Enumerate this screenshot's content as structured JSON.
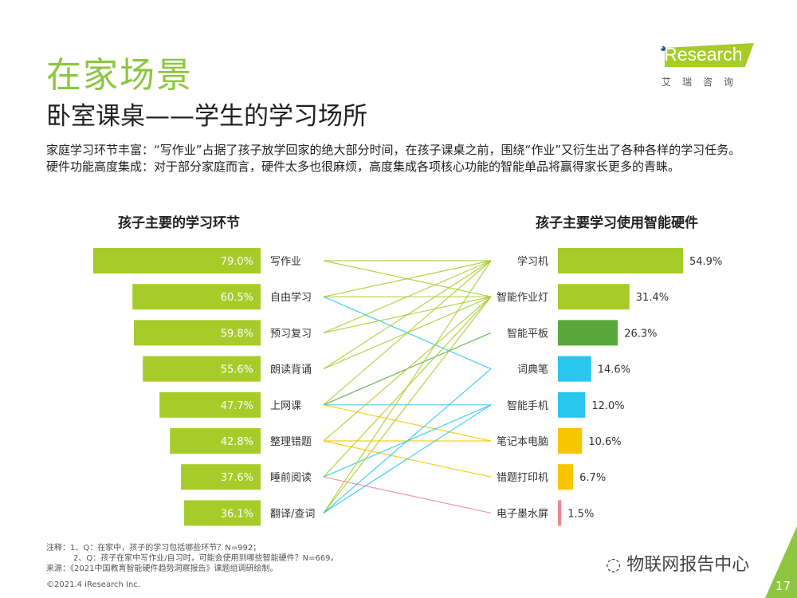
{
  "header": {
    "title": "在家场景",
    "subtitle": "卧室课桌——学生的学习场所"
  },
  "description": [
    "家庭学习环节丰富：“写作业”占据了孩子放学回家的绝大部分时间，在孩子课桌之前，围绕“作业”又衍生出了各种各样的学习任务。",
    "硬件功能高度集成：对于部分家庭而言，硬件太多也很麻烦，高度集成各项核心功能的智能单品将赢得家长更多的青睐。"
  ],
  "logo": {
    "text": "iResearch",
    "cn": "艾瑞咨询"
  },
  "chart_data": [
    {
      "type": "bar",
      "title": "孩子主要的学习环节",
      "categories": [
        "写作业",
        "自由学习",
        "预习复习",
        "朗读背诵",
        "上网课",
        "整理错题",
        "睡前阅读",
        "翻译/查词"
      ],
      "values": [
        79.0,
        60.5,
        59.8,
        55.6,
        47.7,
        42.8,
        37.6,
        36.1
      ],
      "unit": "%",
      "color": "#a6cc2a",
      "orientation": "horizontal-left"
    },
    {
      "type": "bar",
      "title": "孩子主要学习使用智能硬件",
      "categories": [
        "学习机",
        "智能作业灯",
        "智能平板",
        "词典笔",
        "智能手机",
        "笔记本电脑",
        "错题打印机",
        "电子墨水屏"
      ],
      "values": [
        54.9,
        31.4,
        26.3,
        14.6,
        12.0,
        10.6,
        6.7,
        1.5
      ],
      "unit": "%",
      "colors": [
        "#a6cc2a",
        "#a6cc2a",
        "#5aa83c",
        "#29c6ee",
        "#29c6ee",
        "#f7c600",
        "#f7c600",
        "#e88a90"
      ],
      "orientation": "horizontal-right"
    },
    {
      "type": "links",
      "links": [
        [
          0,
          0
        ],
        [
          0,
          1
        ],
        [
          1,
          0
        ],
        [
          1,
          1
        ],
        [
          1,
          3
        ],
        [
          2,
          0
        ],
        [
          2,
          1
        ],
        [
          3,
          0
        ],
        [
          3,
          1
        ],
        [
          4,
          0
        ],
        [
          4,
          2
        ],
        [
          4,
          4
        ],
        [
          4,
          5
        ],
        [
          5,
          1
        ],
        [
          5,
          5
        ],
        [
          5,
          6
        ],
        [
          6,
          1
        ],
        [
          6,
          4
        ],
        [
          6,
          7
        ],
        [
          7,
          0
        ],
        [
          7,
          1
        ],
        [
          7,
          3
        ],
        [
          7,
          4
        ]
      ]
    }
  ],
  "notes": [
    "注释：1、Q：在家中，孩子的学习包括哪些环节？N=992；",
    "2、Q：孩子在家中写作业/自习时，可能会使用到哪些智能硬件？N=669。",
    "来源：《2021中国教育智能硬件趋势洞察报告》课题组调研绘制。"
  ],
  "copyright": "©2021.4 iResearch Inc.",
  "watermark": "物联网报告中心",
  "page_number": "17"
}
